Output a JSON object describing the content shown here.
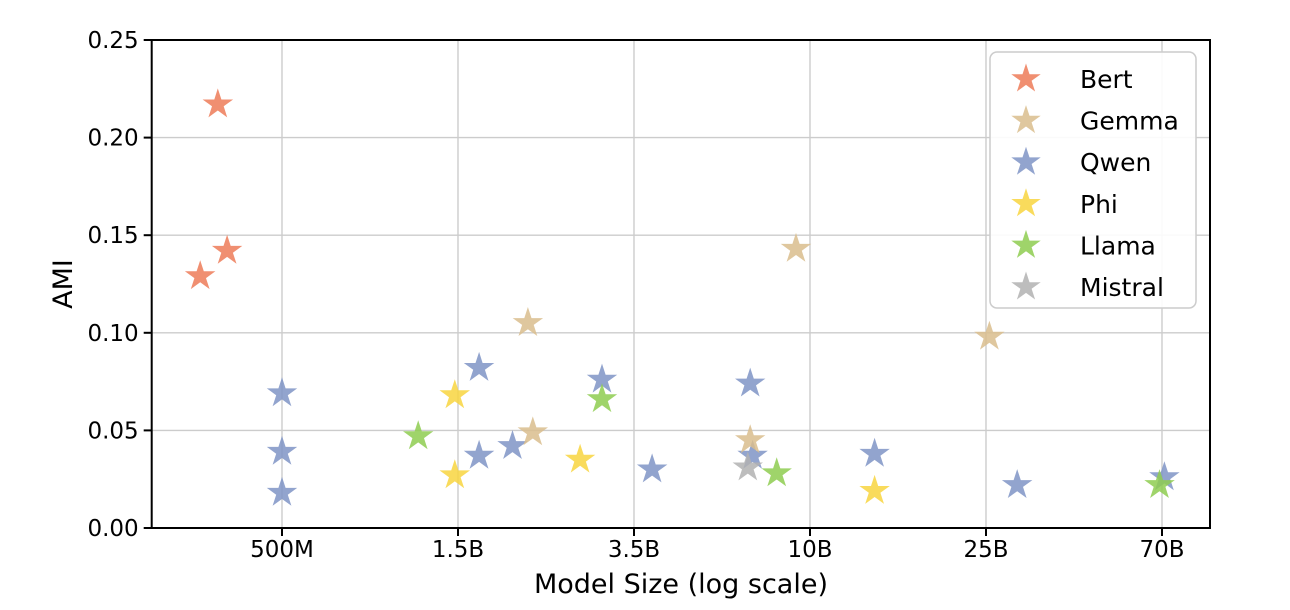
{
  "figure": {
    "background": "#ffffff",
    "grid_color": "#cccccc",
    "spine_color": "#000000",
    "legend_border_color": "#cccccc"
  },
  "chart_data": {
    "type": "scatter",
    "title": "",
    "xlabel": "Model Size (log scale)",
    "ylabel": "AMI",
    "marker": "star",
    "grid": true,
    "ylim": [
      0.0,
      0.25
    ],
    "y_ticks": {
      "labels": [
        "0.00",
        "0.05",
        "0.10",
        "0.15",
        "0.20",
        "0.25"
      ],
      "values": [
        0.0,
        0.05,
        0.1,
        0.15,
        0.2,
        0.25
      ]
    },
    "x_ticks": {
      "labels": [
        "500M",
        "1.5B",
        "3.5B",
        "10B",
        "25B",
        "70B"
      ],
      "values_billions": [
        0.5,
        1.5,
        3.5,
        10,
        25,
        70
      ],
      "spacing": "even-pixel-spacing-with-log-interpolation"
    },
    "legend": {
      "position": "upper right",
      "entries": [
        "Bert",
        "Gemma",
        "Qwen",
        "Phi",
        "Llama",
        "Mistral"
      ]
    },
    "draw_order": [
      "Bert",
      "Qwen",
      "Phi",
      "Gemma",
      "Mistral",
      "Llama"
    ],
    "series": [
      {
        "name": "Bert",
        "color": "#ed7b58",
        "points": [
          {
            "size_b": 0.335,
            "ami": 0.217
          },
          {
            "size_b": 0.355,
            "ami": 0.142
          },
          {
            "size_b": 0.3,
            "ami": 0.129
          }
        ]
      },
      {
        "name": "Gemma",
        "color": "#d9bd8d",
        "points": [
          {
            "size_b": 2.1,
            "ami": 0.105
          },
          {
            "size_b": 2.15,
            "ami": 0.049
          },
          {
            "size_b": 7.0,
            "ami": 0.045
          },
          {
            "size_b": 9.2,
            "ami": 0.143
          },
          {
            "size_b": 25.5,
            "ami": 0.098
          }
        ]
      },
      {
        "name": "Qwen",
        "color": "#7f94c6",
        "points": [
          {
            "size_b": 0.5,
            "ami": 0.069
          },
          {
            "size_b": 0.5,
            "ami": 0.039
          },
          {
            "size_b": 0.5,
            "ami": 0.018
          },
          {
            "size_b": 1.66,
            "ami": 0.082
          },
          {
            "size_b": 1.66,
            "ami": 0.037
          },
          {
            "size_b": 1.95,
            "ami": 0.042
          },
          {
            "size_b": 3.0,
            "ami": 0.076
          },
          {
            "size_b": 3.9,
            "ami": 0.03
          },
          {
            "size_b": 7.0,
            "ami": 0.074
          },
          {
            "size_b": 7.1,
            "ami": 0.037
          },
          {
            "size_b": 14.0,
            "ami": 0.038
          },
          {
            "size_b": 30.0,
            "ami": 0.022
          },
          {
            "size_b": 71.0,
            "ami": 0.026
          }
        ]
      },
      {
        "name": "Phi",
        "color": "#f8d540",
        "points": [
          {
            "size_b": 1.47,
            "ami": 0.068
          },
          {
            "size_b": 1.47,
            "ami": 0.027
          },
          {
            "size_b": 2.7,
            "ami": 0.035
          },
          {
            "size_b": 14.0,
            "ami": 0.019
          }
        ]
      },
      {
        "name": "Llama",
        "color": "#8ecd50",
        "points": [
          {
            "size_b": 1.17,
            "ami": 0.047
          },
          {
            "size_b": 3.0,
            "ami": 0.066
          },
          {
            "size_b": 8.2,
            "ami": 0.028
          },
          {
            "size_b": 69.0,
            "ami": 0.022
          }
        ]
      },
      {
        "name": "Mistral",
        "color": "#b1b1b1",
        "points": [
          {
            "size_b": 6.9,
            "ami": 0.031
          }
        ]
      }
    ]
  }
}
